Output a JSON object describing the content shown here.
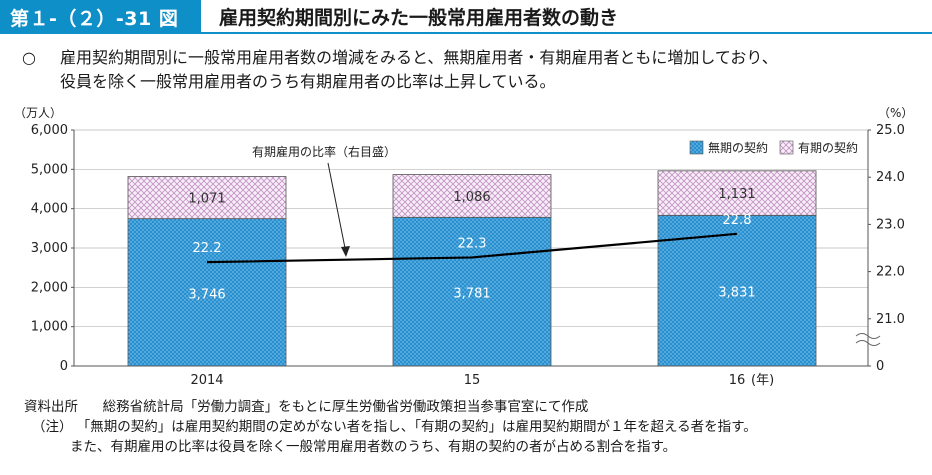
{
  "figure": {
    "label": "第１-（２）-31 図",
    "title": "雇用契約期間別にみた一般常用雇用者数の動き"
  },
  "summary": {
    "bullet": "○",
    "line1": "雇用契約期間別に一般常用雇用者数の増減をみると、無期雇用者・有期雇用者ともに増加しており、",
    "line2": "役員を除く一般常用雇用者のうち有期雇用者の比率は上昇している。"
  },
  "chart_data": {
    "type": "bar",
    "stacked": true,
    "categories": [
      "2014",
      "15",
      "16"
    ],
    "x_unit": "(年)",
    "series": [
      {
        "name": "無期の契約",
        "values": [
          3746,
          3781,
          3831
        ],
        "value_labels": [
          "3,746",
          "3,781",
          "3,831"
        ],
        "color": "#2a8fcf",
        "pattern": "dots"
      },
      {
        "name": "有期の契約",
        "values": [
          1071,
          1086,
          1131
        ],
        "value_labels": [
          "1,071",
          "1,086",
          "1,131"
        ],
        "color": "#cfa6d1",
        "pattern": "cross-hatch"
      }
    ],
    "line_series": {
      "name": "有期雇用の比率",
      "values": [
        22.2,
        22.3,
        22.8
      ],
      "value_labels": [
        "22.2",
        "22.3",
        "22.8"
      ],
      "axis": "right",
      "color": "#000000"
    },
    "line_annotation": "有期雇用の比率（右目盛）",
    "ylabel_left": "（万人）",
    "ylim_left": [
      0,
      6000
    ],
    "yticks_left": [
      "6,000",
      "5,000",
      "4,000",
      "3,000",
      "2,000",
      "1,000",
      "0"
    ],
    "ylabel_right": "（%）",
    "ylim_right": [
      21.0,
      25.0
    ],
    "yticks_right": [
      "25.0",
      "24.0",
      "23.0",
      "22.0",
      "21.0",
      "0"
    ],
    "right_axis_break": true,
    "grid": true,
    "legend_position": "top-right"
  },
  "source": {
    "label": "資料出所",
    "text": "総務省統計局「労働力調査」をもとに厚生労働省労働政策担当参事官室にて作成"
  },
  "note": {
    "label": "（注）",
    "line1": "「無期の契約」は雇用契約期間の定めがない者を指し、「有期の契約」は雇用契約期間が１年を超える者を指す。",
    "line2": "また、有期雇用の比率は役員を除く一般常用雇用者数のうち、有期の契約の者が占める割合を指す。"
  }
}
